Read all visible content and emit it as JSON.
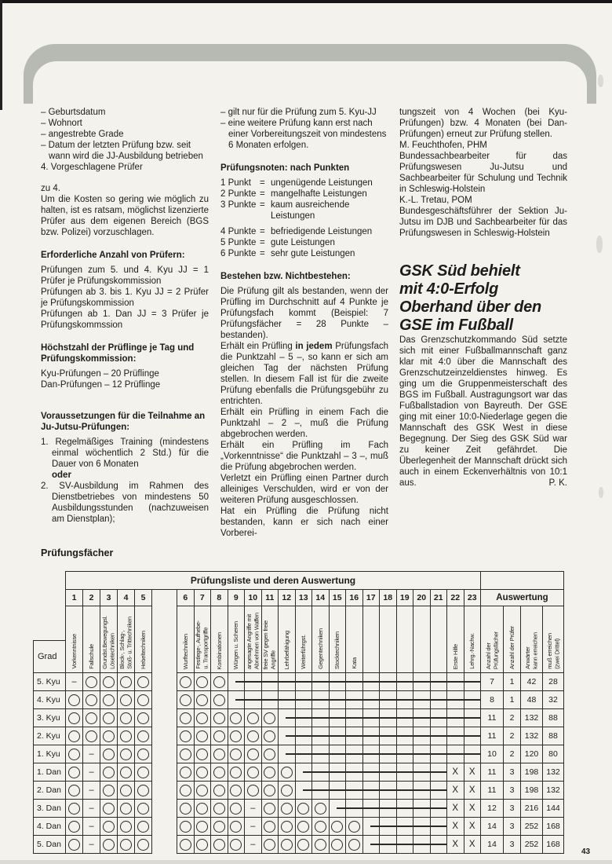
{
  "colors": {
    "paper": "#f3f2ec",
    "ink": "#1c1c1c",
    "band_gray": "#b7bab2",
    "table_line": "#2b2b2b"
  },
  "page": {
    "number": "43"
  },
  "col_left": {
    "dash_items": [
      "Geburtsdatum",
      "Wohnort",
      "angestrebte Grade",
      "Datum der letzten Prüfung bzw. seit wann wird die JJ-Ausbildung betrieben"
    ],
    "item4": "4. Vorgeschlagene Prüfer",
    "zu4_label": "zu 4.",
    "zu4_text": "Um die Kosten so gering wie möglich zu halten, ist es ratsam, möglichst lizenzierte Prüfer aus dem eigenen Bereich (BGS bzw. Polizei) vorzuschlagen.",
    "h1": "Erforderliche Anzahl von Prüfern:",
    "pruefer_lines": [
      "Prüfungen zum 5. und 4. Kyu JJ = 1 Prüfer je Prüfungskommission",
      "Prüfungen ab 3. bis 1. Kyu JJ = 2 Prüfer je Prüfungskommission",
      "Prüfungen ab 1. Dan JJ = 3 Prüfer je Prüfungskommssion"
    ],
    "h2": "Höchstzahl der Prüflinge je Tag und Prüfungskommission:",
    "hoechstzahl_lines": [
      "Kyu-Prüfungen – 20 Prüflinge",
      "Dan-Prüfungen – 12 Prüflinge"
    ],
    "h3": "Voraussetzungen für die Teilnahme an Ju-Jutsu-Prüfungen:",
    "vor1": "1. Regelmäßiges Training (mindestens einmal wöchentlich 2 Std.) für die Dauer von 6 Monaten",
    "oder": "oder",
    "vor2": "2. SV-Ausbildung im Rahmen des Dienstbetriebes von mindestens 50 Ausbildungsstunden (nachzuweisen am Dienstplan);"
  },
  "col_mid": {
    "dash_items": [
      "gilt nur für die Prüfung zum 5. Kyu-JJ",
      "eine weitere Prüfung kann erst nach einer Vorbereitungszeit von mindestens 6 Monaten erfolgen."
    ],
    "h1": "Prüfungsnoten: nach Punkten",
    "noten_eq": "=",
    "noten": [
      {
        "label": "1 Punkt",
        "text": "ungenügende Leistungen"
      },
      {
        "label": "2 Punkte",
        "text": "mangelhafte Leistungen"
      },
      {
        "label": "3 Punkte",
        "text": "kaum ausreichende Leistungen"
      },
      {
        "label": "4 Punkte",
        "text": "befriedigende Leistungen"
      },
      {
        "label": "5 Punkte",
        "text": "gute Leistungen"
      },
      {
        "label": "6 Punkte",
        "text": "sehr gute Leistungen"
      }
    ],
    "h2": "Bestehen bzw. Nichtbestehen:",
    "p1": "Die Prüfung gilt als bestanden, wenn der Prüfling im Durchschnitt auf 4 Punkte je Prüfungsfach kommt (Beispiel: 7 Prüfungsfächer = 28 Punkte – bestanden).",
    "p2_pre": "Erhält ein Prüfling ",
    "p2_bold": "in jedem",
    "p2_post": " Prüfungsfach die Punktzahl – 5 –, so kann er sich am gleichen Tag der nächsten Prüfung stellen. In diesem Fall ist für die zweite Prüfung ebenfalls die Prüfungsgebühr zu entrichten.",
    "p3": "Erhält ein Prüfling in einem Fach die Punktzahl – 2 –, muß die Prüfung abgebrochen werden.",
    "p4": "Erhält ein Prüfling im Fach „Vorkenntnisse“ die Punktzahl – 3 –, muß die Prüfung abgebrochen werden.",
    "p5": "Verletzt ein Prüfling einen Partner durch alleiniges Verschulden, wird er von der weiteren Prüfung ausgeschlossen.",
    "p6": "Hat ein Prüfling die Prüfung nicht bestanden, kann er sich nach einer Vorberei-"
  },
  "col_right": {
    "p1": "tungszeit von 4 Wochen (bei Kyu-Prüfungen) bzw. 4 Monaten (bei Dan-Prüfungen) erneut zur Prüfung stellen.",
    "sig1_name": "M. Feuchthofen, PHM",
    "sig1_role": "Bundessachbearbeiter für das Prüfungswesen Ju-Jutsu und Sachbearbeiter für Schulung und Technik in Schleswig-Holstein",
    "sig2_name": "K.-L. Tretau, POM",
    "sig2_role": "Bundesgeschäftsführer der Sektion Ju-Jutsu im DJB und Sachbearbeiter für das Prüfungswesen in Schleswig-Holstein",
    "article_title_lines": [
      "GSK Süd behielt",
      "mit 4:0-Erfolg",
      "Oberhand über den",
      "GSE im Fußball"
    ],
    "article_body": "Das Grenzschutzkommando Süd setzte sich mit einer Fußballmannschaft ganz klar mit 4:0 über die Mannschaft des Grenzschutzeinzeldienstes hinweg. Es ging um die Gruppenmeisterschaft des BGS im Fußball. Austragungsort war das Fußballstadion von Bayreuth. Der GSE ging mit einer 10:0-Niederlage gegen die Mannschaft des GSK West in diese Begegnung. Der Sieg des GSK Süd war zu keiner Zeit gefährdet. Die Überlegenheit der Mannschaft drückt sich auch in einem Eckenverhältnis von 10:1 aus.",
    "article_sig": "P. K."
  },
  "table": {
    "heading": "Prüfungsfächer",
    "band_title": "Prüfungsliste und deren Auswertung",
    "grad_label": "Grad",
    "auswertung_title": "Auswertung",
    "columns": [
      {
        "num": "1",
        "label": [
          "Vorkenntnisse"
        ]
      },
      {
        "num": "2",
        "label": [
          "Fallschule"
        ]
      },
      {
        "num": "3",
        "label": [
          "Grundst.Bewegungsl.",
          "Lösetechniken"
        ]
      },
      {
        "num": "4",
        "label": [
          "Block-, Schlag-,",
          "Stoß- u. Trittechniken"
        ]
      },
      {
        "num": "5",
        "label": [
          "Hebeltechniken"
        ]
      },
      {
        "num": "6",
        "label": [
          "Wurftechniken"
        ]
      },
      {
        "num": "7",
        "label": [
          "Festlege-, Aufhebe-",
          "u. Transportgriffe"
        ]
      },
      {
        "num": "8",
        "label": [
          "Kombinationen"
        ]
      },
      {
        "num": "9",
        "label": [
          "Würgen u. Scheren"
        ]
      },
      {
        "num": "10",
        "label": [
          "angesagte Angriffe mit",
          "Abnehmen von Waffen"
        ]
      },
      {
        "num": "11",
        "label": [
          "freie SV gegen freie",
          "Angriffe"
        ]
      },
      {
        "num": "12",
        "label": [
          "Lehrbefähigung"
        ]
      },
      {
        "num": "13",
        "label": [
          "Weiterführgst."
        ]
      },
      {
        "num": "14",
        "label": [
          "Gegentechniken"
        ]
      },
      {
        "num": "15",
        "label": [
          "Stocktechniken"
        ]
      },
      {
        "num": "16",
        "label": [
          "Kata"
        ]
      },
      {
        "num": "17",
        "label": []
      },
      {
        "num": "18",
        "label": []
      },
      {
        "num": "19",
        "label": []
      },
      {
        "num": "20",
        "label": []
      },
      {
        "num": "21",
        "label": []
      },
      {
        "num": "22",
        "label": [
          "Erste Hilfe"
        ]
      },
      {
        "num": "23",
        "label": [
          "Lehrg.-Nachw."
        ]
      }
    ],
    "auswertung_columns": [
      [
        "Anzahl der",
        "Prüfungsfächer"
      ],
      [
        "Anzahl der Prüfer"
      ],
      [
        "Anwärter",
        "kann erreichen"
      ],
      [
        "muß erreichen",
        "(zwei Drittel)"
      ]
    ],
    "rows": [
      {
        "grad": "5. Kyu",
        "cells": [
          "-",
          "O",
          "O",
          "O",
          "O",
          "O",
          "O",
          "O",
          "L",
          "L",
          "L",
          "L",
          "L",
          "L",
          "L",
          "L",
          "L",
          "L",
          "L",
          "L",
          "L",
          "L",
          "L"
        ],
        "auswertung": [
          "7",
          "1",
          "42",
          "28"
        ]
      },
      {
        "grad": "4. Kyu",
        "cells": [
          "O",
          "O",
          "O",
          "O",
          "O",
          "O",
          "O",
          "O",
          "L",
          "L",
          "L",
          "L",
          "L",
          "L",
          "L",
          "L",
          "L",
          "L",
          "L",
          "L",
          "L",
          "L",
          "L"
        ],
        "auswertung": [
          "8",
          "1",
          "48",
          "32"
        ]
      },
      {
        "grad": "3. Kyu",
        "cells": [
          "O",
          "O",
          "O",
          "O",
          "O",
          "O",
          "O",
          "O",
          "O",
          "O",
          "O",
          "L",
          "L",
          "L",
          "L",
          "L",
          "L",
          "L",
          "L",
          "L",
          "L",
          "L",
          "L"
        ],
        "auswertung": [
          "11",
          "2",
          "132",
          "88"
        ]
      },
      {
        "grad": "2. Kyu",
        "cells": [
          "O",
          "O",
          "O",
          "O",
          "O",
          "O",
          "O",
          "O",
          "O",
          "O",
          "O",
          "L",
          "L",
          "L",
          "L",
          "L",
          "L",
          "L",
          "L",
          "L",
          "L",
          "L",
          "L"
        ],
        "auswertung": [
          "11",
          "2",
          "132",
          "88"
        ]
      },
      {
        "grad": "1. Kyu",
        "cells": [
          "O",
          "-",
          "O",
          "O",
          "O",
          "O",
          "O",
          "O",
          "O",
          "O",
          "O",
          "L",
          "L",
          "L",
          "L",
          "L",
          "L",
          "L",
          "L",
          "L",
          "L",
          "L",
          "L"
        ],
        "auswertung": [
          "10",
          "2",
          "120",
          "80"
        ]
      },
      {
        "grad": "1. Dan",
        "cells": [
          "O",
          "-",
          "O",
          "O",
          "O",
          "O",
          "O",
          "O",
          "O",
          "O",
          "O",
          "O",
          "L",
          "L",
          "L",
          "L",
          "L",
          "L",
          "L",
          "L",
          "L",
          "X",
          "X"
        ],
        "auswertung": [
          "11",
          "3",
          "198",
          "132"
        ]
      },
      {
        "grad": "2. Dan",
        "cells": [
          "O",
          "-",
          "O",
          "O",
          "O",
          "O",
          "O",
          "O",
          "O",
          "O",
          "O",
          "O",
          "L",
          "L",
          "L",
          "L",
          "L",
          "L",
          "L",
          "L",
          "L",
          "X",
          "X"
        ],
        "auswertung": [
          "11",
          "3",
          "198",
          "132"
        ]
      },
      {
        "grad": "3. Dan",
        "cells": [
          "O",
          "-",
          "O",
          "O",
          "O",
          "O",
          "O",
          "O",
          "O",
          "-",
          "O",
          "O",
          "O",
          "O",
          "L",
          "L",
          "L",
          "L",
          "L",
          "L",
          "L",
          "X",
          "X"
        ],
        "auswertung": [
          "12",
          "3",
          "216",
          "144"
        ]
      },
      {
        "grad": "4. Dan",
        "cells": [
          "O",
          "-",
          "O",
          "O",
          "O",
          "O",
          "O",
          "O",
          "O",
          "-",
          "O",
          "O",
          "O",
          "O",
          "O",
          "O",
          "L",
          "L",
          "L",
          "L",
          "L",
          "X",
          "X"
        ],
        "auswertung": [
          "14",
          "3",
          "252",
          "168"
        ]
      },
      {
        "grad": "5. Dan",
        "cells": [
          "O",
          "-",
          "O",
          "O",
          "O",
          "O",
          "O",
          "O",
          "O",
          "-",
          "O",
          "O",
          "O",
          "O",
          "O",
          "O",
          "L",
          "L",
          "L",
          "L",
          "L",
          "X",
          "X"
        ],
        "auswertung": [
          "14",
          "3",
          "252",
          "168"
        ]
      }
    ]
  }
}
